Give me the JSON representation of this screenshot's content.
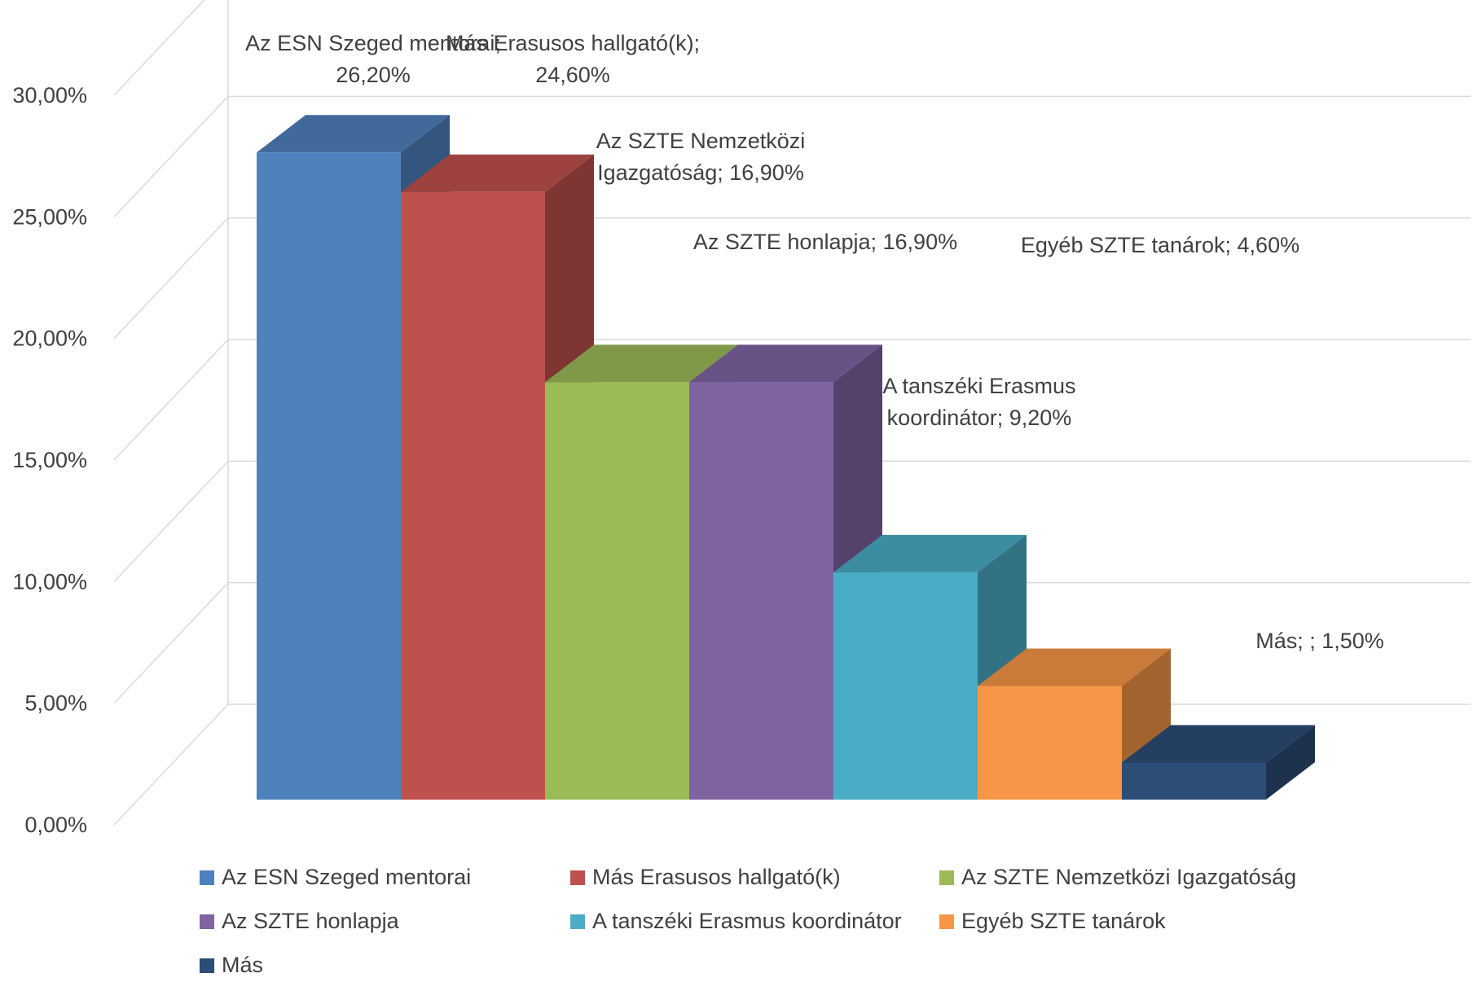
{
  "chart_data": {
    "type": "bar",
    "style": "3d-clustered-column",
    "title": "",
    "xlabel": "",
    "ylabel": "",
    "ylim": [
      0,
      30
    ],
    "y_ticks": [
      "0,00%",
      "5,00%",
      "10,00%",
      "15,00%",
      "20,00%",
      "25,00%",
      "30,00%"
    ],
    "grid": true,
    "legend_position": "bottom",
    "series": [
      {
        "name": "Az ESN Szeged mentorai",
        "value": 26.2,
        "color": "#4f81bd",
        "data_label": [
          "Az ESN Szeged mentorai;",
          "26,20%"
        ]
      },
      {
        "name": "Más Erasusos hallgató(k)",
        "value": 24.6,
        "color": "#c0504d",
        "data_label": [
          "Más Erasusos hallgató(k);",
          "24,60%"
        ]
      },
      {
        "name": "Az SZTE Nemzetközi Igazgatóság",
        "value": 16.9,
        "color": "#9bbb59",
        "data_label": [
          "Az SZTE Nemzetközi",
          "Igazgatóság; 16,90%"
        ]
      },
      {
        "name": "Az SZTE honlapja",
        "value": 16.9,
        "color": "#8064a2",
        "data_label": [
          "Az SZTE honlapja; 16,90%"
        ]
      },
      {
        "name": "A tanszéki Erasmus koordinátor",
        "value": 9.2,
        "color": "#4bacc6",
        "data_label": [
          "A tanszéki Erasmus",
          "koordinátor; 9,20%"
        ]
      },
      {
        "name": "Egyéb SZTE tanárok",
        "value": 4.6,
        "color": "#f79646",
        "data_label": [
          "Egyéb SZTE tanárok; 4,60%"
        ]
      },
      {
        "name": "Más",
        "value": 1.5,
        "color": "#2c4d75",
        "data_label": [
          "Más; ; 1,50%"
        ]
      }
    ]
  }
}
